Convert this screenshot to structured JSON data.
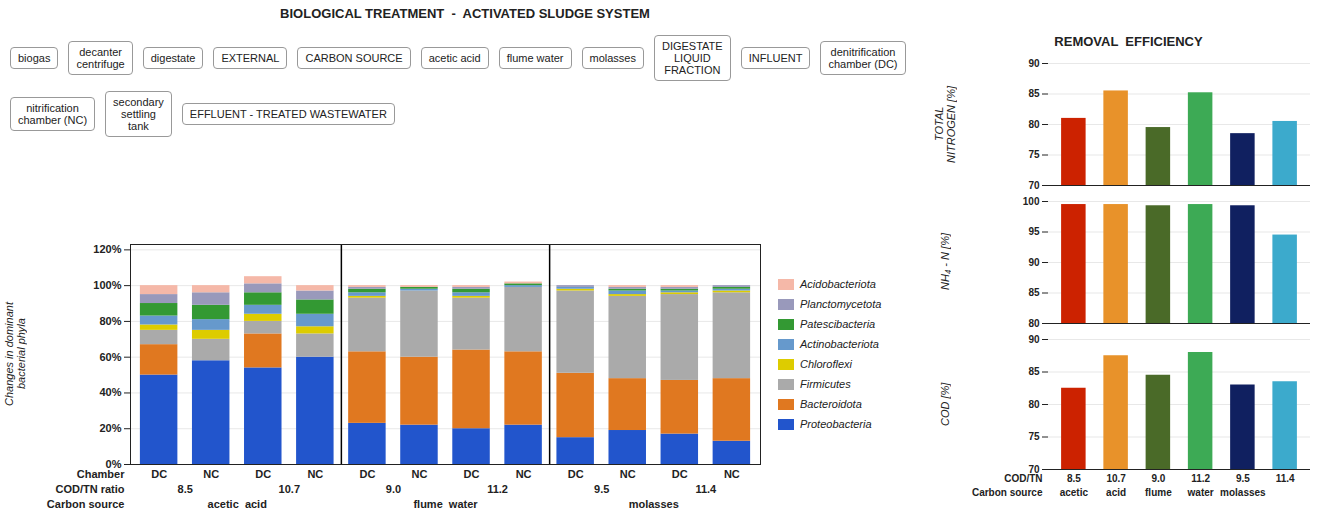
{
  "chart_data": [
    {
      "type": "diagram",
      "title": "BIOLOGICAL TREATMENT  -  ACTIVATED SLUDGE SYSTEM",
      "annotations": [
        "biogas",
        "decanter\ncentrifuge",
        "digestate",
        "EXTERNAL",
        "CARBON SOURCE",
        "acetic acid",
        "flume water",
        "molasses",
        "DIGESTATE\nLIQUID\nFRACTION",
        "INFLUENT",
        "denitrification\nchamber (DC)",
        "nitrification\nchamber (NC)",
        "secondary\nsettling\ntank",
        "EFFLUENT - TREATED WASTEWATER"
      ]
    },
    {
      "type": "bar",
      "stacked": true,
      "ylabel": "Changes in dominant\nbacterial phyla",
      "category_rows": [
        {
          "label": "Chamber",
          "labels": [
            "DC",
            "NC",
            "DC",
            "NC",
            "DC",
            "NC",
            "DC",
            "NC",
            "DC",
            "NC",
            "DC",
            "NC"
          ]
        },
        {
          "label": "COD/TN ratio",
          "labels": [
            "8.5",
            "10.7",
            "9.0",
            "11.2",
            "9.5",
            "11.4"
          ]
        },
        {
          "label": "Carbon source",
          "labels": [
            "acetic  acid",
            "flume  water",
            "molasses"
          ]
        }
      ],
      "series": [
        {
          "name": "Proteobacteria",
          "color": "#2255CC",
          "values": [
            50,
            58,
            54,
            60,
            23,
            22,
            20,
            22,
            15,
            19,
            17,
            13
          ]
        },
        {
          "name": "Bacteroidota",
          "color": "#E07820",
          "values": [
            17,
            0,
            19,
            0,
            40,
            38,
            44,
            41,
            36,
            29,
            30,
            35
          ]
        },
        {
          "name": "Firmicutes",
          "color": "#AAAAAA",
          "values": [
            8,
            12,
            7,
            13,
            30,
            37,
            29,
            36,
            46,
            46,
            48,
            48
          ]
        },
        {
          "name": "Chloroflexi",
          "color": "#DDCC00",
          "values": [
            3,
            5,
            4,
            4,
            1,
            0,
            1,
            0,
            1,
            1,
            1,
            1
          ]
        },
        {
          "name": "Actinobacteriota",
          "color": "#6699CC",
          "values": [
            5,
            6,
            5,
            7,
            2,
            1,
            2,
            1,
            1,
            2,
            1,
            1
          ]
        },
        {
          "name": "Patescibacteria",
          "color": "#339933",
          "values": [
            7,
            8,
            7,
            8,
            2,
            1,
            2,
            1,
            0,
            1,
            1,
            1
          ]
        },
        {
          "name": "Planctomycetota",
          "color": "#9999BB",
          "values": [
            5,
            7,
            5,
            5,
            1,
            0,
            1,
            0,
            1,
            1,
            1,
            1
          ]
        },
        {
          "name": "Acidobacteriota",
          "color": "#F5B8A8",
          "values": [
            5,
            4,
            4,
            3,
            1,
            1,
            1,
            1,
            0,
            1,
            1,
            0
          ]
        }
      ],
      "ylim": [
        0,
        123
      ],
      "yticks": [
        {
          "value": 0,
          "label": "0%"
        },
        {
          "value": 20,
          "label": "20%"
        },
        {
          "value": 40,
          "label": "40%"
        },
        {
          "value": 60,
          "label": "60%"
        },
        {
          "value": 80,
          "label": "80%"
        },
        {
          "value": 100,
          "label": "100%"
        },
        {
          "value": 120,
          "label": "120%"
        }
      ],
      "grid": true,
      "legend": "right"
    },
    {
      "type": "bar",
      "title": "REMOVAL  EFFICIENCY",
      "ylabel": "TOTAL\nNITROGEN [%]",
      "values": [
        81.0,
        85.5,
        79.5,
        85.2,
        78.5,
        80.5
      ],
      "colors": [
        "#CC2200",
        "#E8922A",
        "#4A6A28",
        "#3DAA55",
        "#102060",
        "#3CAACC"
      ],
      "ylim": [
        70,
        90
      ],
      "yticks": [
        70,
        75,
        80,
        85,
        90
      ],
      "grid": true,
      "tick_labels": "y"
    },
    {
      "type": "bar",
      "ylabel": "NH₄ - N [%]",
      "values": [
        99.5,
        99.5,
        99.3,
        99.5,
        99.3,
        94.5
      ],
      "colors": [
        "#CC2200",
        "#E8922A",
        "#4A6A28",
        "#3DAA55",
        "#102060",
        "#3CAACC"
      ],
      "ylim": [
        80,
        100
      ],
      "yticks": [
        80,
        85,
        90,
        95,
        100
      ],
      "grid": true,
      "tick_labels": "y"
    },
    {
      "type": "bar",
      "ylabel": "COD [%]",
      "values": [
        82.5,
        87.5,
        84.5,
        88.0,
        83.0,
        83.5
      ],
      "colors": [
        "#CC2200",
        "#E8922A",
        "#4A6A28",
        "#3DAA55",
        "#102060",
        "#3CAACC"
      ],
      "ylim": [
        70,
        90
      ],
      "yticks": [
        70,
        75,
        80,
        85,
        90
      ],
      "grid": true,
      "category_rows": [
        {
          "label": "COD/TN",
          "labels": [
            "8.5",
            "10.7",
            "9.0",
            "11.2",
            "9.5",
            "11.4"
          ]
        },
        {
          "label": "Carbon source",
          "labels": [
            "acetic",
            "acid",
            "flume",
            "water",
            "molasses",
            null
          ]
        }
      ]
    }
  ]
}
